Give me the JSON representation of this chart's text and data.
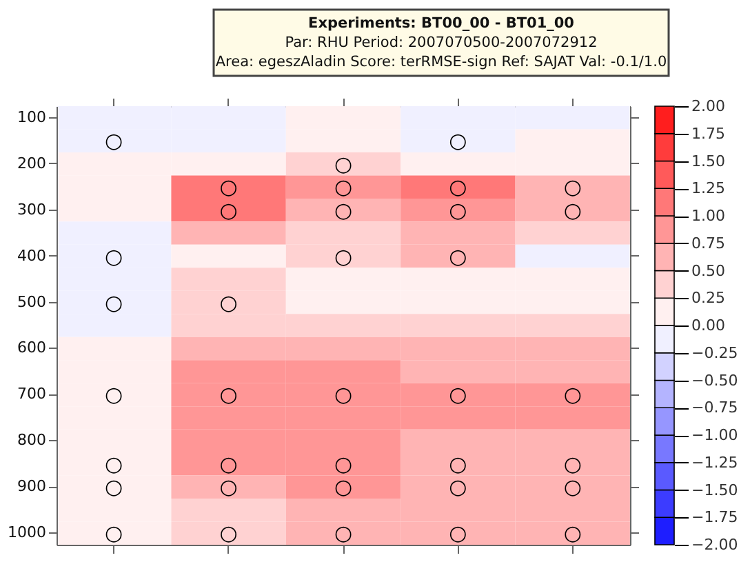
{
  "chart_data": {
    "type": "heatmap",
    "title": "Experiments: BT00_00 - BT01_00",
    "subtitle": "Par: RHU    Period: 2007070500-2007072912\nArea: egeszAladin    Score: terRMSE-sign     Ref: SAJAT    Val: -0.1/1.0",
    "categories": [
      null,
      null,
      null,
      null,
      null
    ],
    "y_categories": [
      "100",
      null,
      "200",
      null,
      "300",
      null,
      "400",
      null,
      "500",
      null,
      "600",
      null,
      "700",
      null,
      "800",
      null,
      "900",
      null,
      "1000"
    ],
    "cells": [
      [
        -0.1,
        -0.1,
        0.0,
        -0.1,
        -0.05
      ],
      [
        -0.2,
        -0.1,
        0.05,
        -0.2,
        0.05
      ],
      [
        0.1,
        0.1,
        0.3,
        0.2,
        0.2
      ],
      [
        0.15,
        1.1,
        0.8,
        1.1,
        0.7
      ],
      [
        0.1,
        1.1,
        0.6,
        0.8,
        0.6
      ],
      [
        -0.05,
        0.6,
        0.4,
        0.6,
        0.3
      ],
      [
        -0.1,
        0.2,
        0.4,
        0.5,
        -0.1
      ],
      [
        -0.1,
        0.3,
        0.2,
        0.2,
        0.2
      ],
      [
        -0.2,
        0.3,
        0.2,
        0.2,
        0.2
      ],
      [
        -0.05,
        0.35,
        0.3,
        0.3,
        0.3
      ],
      [
        0.1,
        0.6,
        0.6,
        0.6,
        0.6
      ],
      [
        0.15,
        0.8,
        0.8,
        0.7,
        0.7
      ],
      [
        0.2,
        0.8,
        0.8,
        0.8,
        0.8
      ],
      [
        0.2,
        0.8,
        0.8,
        0.8,
        0.8
      ],
      [
        0.2,
        0.8,
        0.8,
        0.6,
        0.6
      ],
      [
        0.2,
        0.8,
        0.8,
        0.6,
        0.6
      ],
      [
        0.2,
        0.6,
        0.8,
        0.6,
        0.6
      ],
      [
        0.2,
        0.4,
        0.6,
        0.6,
        0.6
      ],
      [
        0.2,
        0.4,
        0.6,
        0.6,
        0.6
      ]
    ],
    "cell_labels": [
      [
        null,
        null,
        null,
        null,
        null
      ],
      [
        "○",
        null,
        null,
        "○",
        null
      ],
      [
        null,
        null,
        "○",
        null,
        null
      ],
      [
        null,
        "○",
        "○",
        "○",
        "○"
      ],
      [
        null,
        "○",
        "○",
        "○",
        "○"
      ],
      [
        null,
        null,
        null,
        null,
        null
      ],
      [
        "○",
        null,
        "○",
        "○",
        null
      ],
      [
        null,
        null,
        null,
        null,
        null
      ],
      [
        "○",
        "○",
        null,
        null,
        null
      ],
      [
        null,
        null,
        null,
        null,
        null
      ],
      [
        null,
        null,
        null,
        null,
        null
      ],
      [
        null,
        null,
        null,
        null,
        null
      ],
      [
        "○",
        "○",
        "○",
        "○",
        "○"
      ],
      [
        null,
        null,
        null,
        null,
        null
      ],
      [
        null,
        null,
        null,
        null,
        null
      ],
      [
        "○",
        "○",
        "○",
        "○",
        "○"
      ],
      [
        "○",
        "○",
        "○",
        "○",
        "○"
      ],
      [
        null,
        null,
        null,
        null,
        null
      ],
      [
        "○",
        "○",
        "○",
        "○",
        "○"
      ]
    ],
    "clim": [
      -2,
      2
    ],
    "cticks": [
      {
        "value": 2,
        "label": "2.00"
      },
      {
        "value": 1.75,
        "label": "1.75"
      },
      {
        "value": 1.5,
        "label": "1.50"
      },
      {
        "value": 1.25,
        "label": "1.25"
      },
      {
        "value": 1,
        "label": "1.00"
      },
      {
        "value": 0.75,
        "label": "0.75"
      },
      {
        "value": 0.5,
        "label": "0.50"
      },
      {
        "value": 0.25,
        "label": "0.25"
      },
      {
        "value": 0,
        "label": "0.00"
      },
      {
        "value": -0.25,
        "label": "−0.25"
      },
      {
        "value": -0.5,
        "label": "−0.50"
      },
      {
        "value": -0.75,
        "label": "−0.75"
      },
      {
        "value": -1,
        "label": "−1.00"
      },
      {
        "value": -1.25,
        "label": "−1.25"
      },
      {
        "value": -1.5,
        "label": "−1.50"
      },
      {
        "value": -1.75,
        "label": "−1.75"
      },
      {
        "value": -2,
        "label": "−2.00"
      }
    ],
    "grid": false,
    "tick_labels": "y"
  }
}
